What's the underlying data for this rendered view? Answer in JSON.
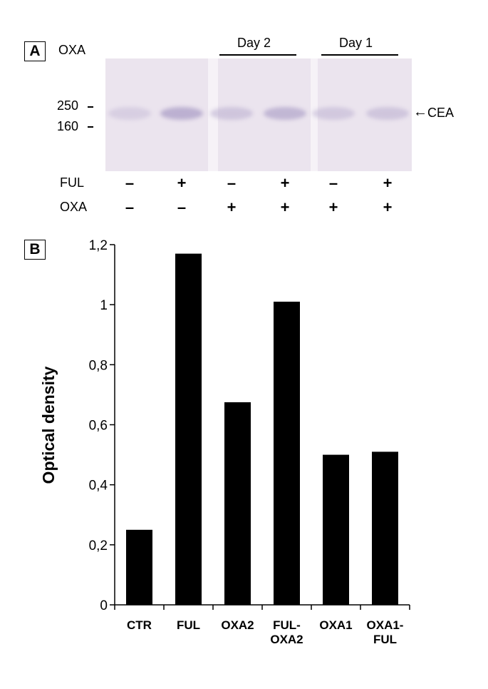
{
  "panel_a": {
    "label": "A",
    "oxa_header": "OXA",
    "group_labels": [
      "Day 2",
      "Day 1"
    ],
    "markers": [
      "250",
      "160"
    ],
    "band_label": "CEA",
    "row_labels": [
      "FUL",
      "OXA"
    ],
    "ful_signs": [
      "–",
      "+",
      "–",
      "+",
      "–",
      "+"
    ],
    "oxa_signs": [
      "–",
      "–",
      "+",
      "+",
      "+",
      "+"
    ],
    "band_strengths": [
      0.35,
      0.85,
      0.5,
      0.75,
      0.45,
      0.5
    ]
  },
  "panel_b": {
    "label": "B"
  },
  "chart_data": {
    "type": "bar",
    "title": "",
    "xlabel": "",
    "ylabel": "Optical density",
    "categories": [
      "CTR",
      "FUL",
      "OXA2",
      "FUL-\nOXA2",
      "OXA1",
      "OXA1-\nFUL"
    ],
    "values": [
      0.25,
      1.17,
      0.675,
      1.01,
      0.5,
      0.51
    ],
    "ylim": [
      0,
      1.2
    ],
    "yticks": [
      "0",
      "0,2",
      "0,4",
      "0,6",
      "0,8",
      "1",
      "1,2"
    ],
    "ytick_values": [
      0,
      0.2,
      0.4,
      0.6,
      0.8,
      1.0,
      1.2
    ],
    "grid": false,
    "bar_color": "#000000"
  }
}
